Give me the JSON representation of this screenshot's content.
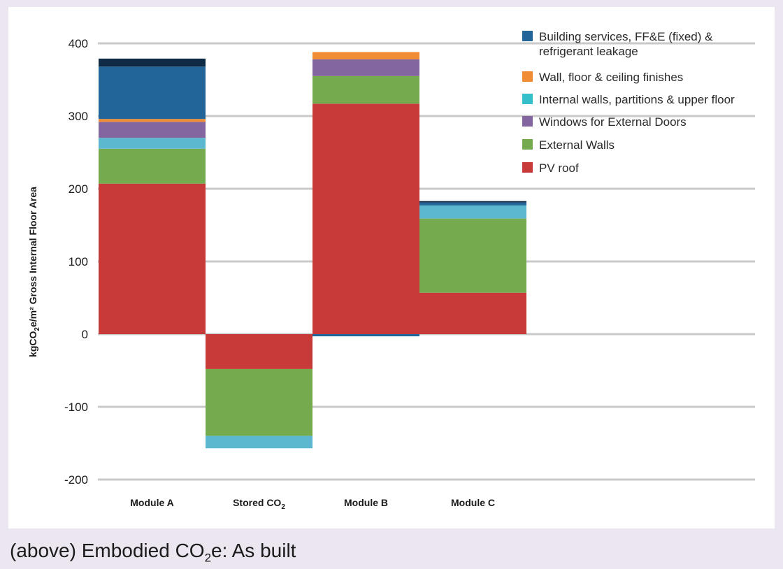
{
  "caption": {
    "prefix": "(above) Embodied CO",
    "sub": "2",
    "suffix": "e: As built"
  },
  "chart_data": {
    "type": "bar",
    "stacked": true,
    "categories": [
      {
        "label": "Module A"
      },
      {
        "label": "Stored CO",
        "sub": "2"
      },
      {
        "label": "Module B"
      },
      {
        "label": "Module C"
      }
    ],
    "ylabel": {
      "pre": "kgCO",
      "sub": "2",
      "post": "e/m² Gross Internal Floor Area"
    },
    "ylim": [
      -200,
      400
    ],
    "yticks": [
      400,
      300,
      200,
      100,
      0,
      -100,
      -200
    ],
    "grid": true,
    "legend_position": "top-right",
    "series": [
      {
        "name": "PV roof",
        "color": "#c83a3a",
        "values": [
          207,
          -48,
          317,
          57
        ]
      },
      {
        "name": "External Walls",
        "color": "#76aa4f",
        "values": [
          48,
          -92,
          38,
          102
        ]
      },
      {
        "name": "Internal walls, partitions & upper floor",
        "color": "#5bb8cf",
        "values": [
          15,
          -17,
          0,
          18
        ]
      },
      {
        "name": "Windows for External Doors",
        "color": "#8366a0",
        "values": [
          22,
          0,
          23,
          0
        ]
      },
      {
        "name": "Wall, floor & ceiling finishes",
        "color": "#f08c33",
        "values": [
          4,
          0,
          10,
          0
        ]
      },
      {
        "name": "Building services, FF&E (fixed) & refrigerant leakage",
        "color": "#226699",
        "values": [
          72,
          0,
          -3,
          4
        ]
      },
      {
        "name": "",
        "color": "#0f2a44",
        "values": [
          11,
          0,
          0,
          2
        ]
      }
    ],
    "legend": [
      {
        "lines": [
          "Building services, FF&E (fixed) &",
          "refrigerant leakage"
        ],
        "color": "#226699"
      },
      {
        "lines": [
          "Wall, floor & ceiling finishes"
        ],
        "color": "#f08c33"
      },
      {
        "lines": [
          "Internal walls, partitions & upper floor"
        ],
        "color": "#34bfcb"
      },
      {
        "lines": [
          "Windows for External Doors"
        ],
        "color": "#8366a0"
      },
      {
        "lines": [
          "External Walls"
        ],
        "color": "#76aa4f"
      },
      {
        "lines": [
          "PV roof"
        ],
        "color": "#c83a3a"
      }
    ]
  }
}
